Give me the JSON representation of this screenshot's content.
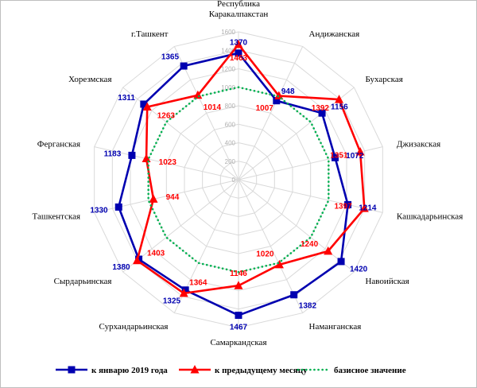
{
  "chart_data": {
    "type": "radar",
    "title": "",
    "categories": [
      "Республика Каракалпакстан",
      "Андижанская",
      "Бухарская",
      "Джизакская",
      "Кашкадарьинская",
      "Навоийская",
      "Наманганская",
      "Самаркандская",
      "Сурхандарьинская",
      "Сырдарьинская",
      "Ташкентская",
      "Ферганская",
      "Хорезмская",
      "г.Ташкент"
    ],
    "ticks": [
      0,
      200,
      400,
      600,
      800,
      1000,
      1200,
      1400,
      1600
    ],
    "rlim": [
      0,
      1600
    ],
    "grid": true,
    "legend_position": "bottom",
    "series": [
      {
        "name": "к январю 2019 года",
        "color": "#0000b0",
        "marker": "square",
        "values": [
          1370,
          948,
          1156,
          1072,
          1214,
          1420,
          1382,
          1467,
          1325,
          1380,
          1330,
          1183,
          1311,
          1365
        ]
      },
      {
        "name": "к предыдущему месяцу",
        "color": "#ff0000",
        "marker": "triangle",
        "values": [
          1463,
          1007,
          1392,
          1351,
          1397,
          1240,
          1020,
          1146,
          1364,
          1403,
          944,
          1023,
          1263,
          1014
        ]
      },
      {
        "name": "базисное значение",
        "color": "#00b050",
        "marker": "none",
        "line": "dotted",
        "values": [
          1000,
          1000,
          1000,
          1000,
          1000,
          1000,
          1000,
          1000,
          1000,
          1000,
          1000,
          1000,
          1000,
          1000
        ]
      }
    ]
  }
}
